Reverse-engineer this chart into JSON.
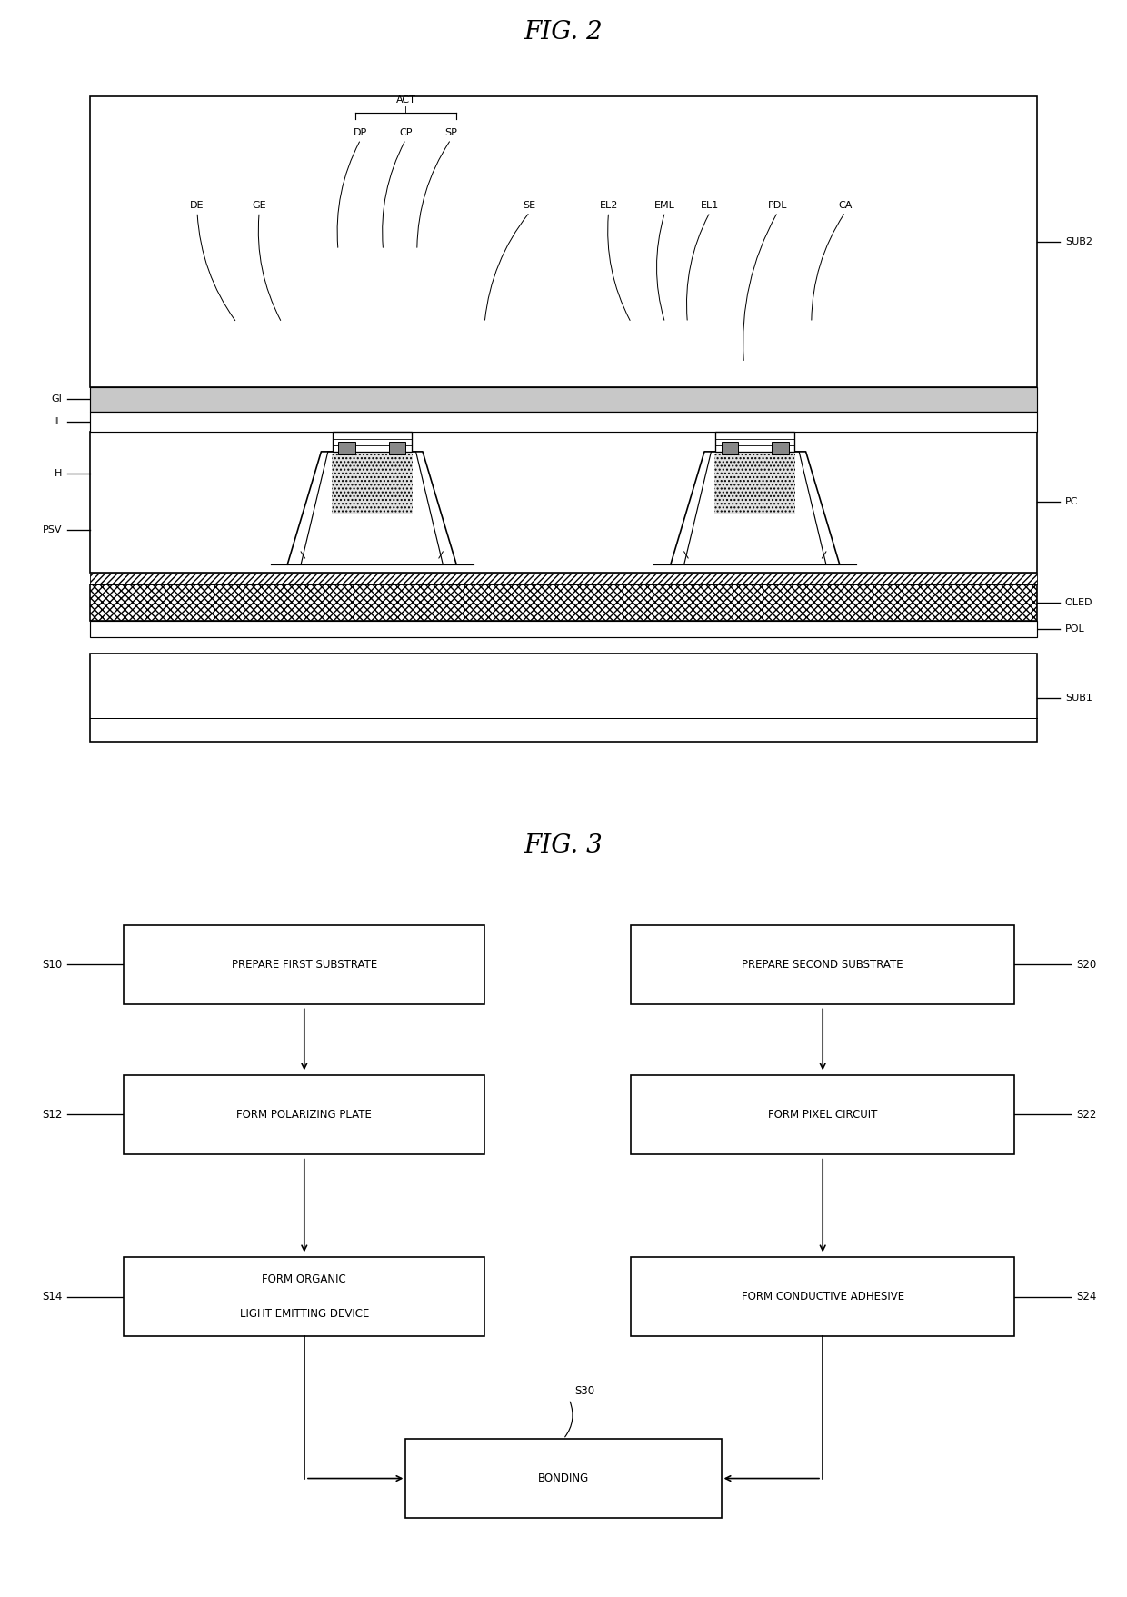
{
  "fig_title1": "FIG. 2",
  "fig_title2": "FIG. 3",
  "background": "#ffffff",
  "line_color": "#000000",
  "fig3": {
    "left_boxes": [
      {
        "label": "PREPARE FIRST SUBSTRATE",
        "step": "S10"
      },
      {
        "label": "FORM POLARIZING PLATE",
        "step": "S12"
      },
      {
        "label": "FORM ORGANIC\nLIGHT EMITTING DEVICE",
        "step": "S14"
      }
    ],
    "right_boxes": [
      {
        "label": "PREPARE SECOND SUBSTRATE",
        "step": "S20"
      },
      {
        "label": "FORM PIXEL CIRCUIT",
        "step": "S22"
      },
      {
        "label": "FORM CONDUCTIVE ADHESIVE",
        "step": "S24"
      }
    ],
    "bottom_box": {
      "label": "BONDING",
      "step": "S30"
    }
  }
}
